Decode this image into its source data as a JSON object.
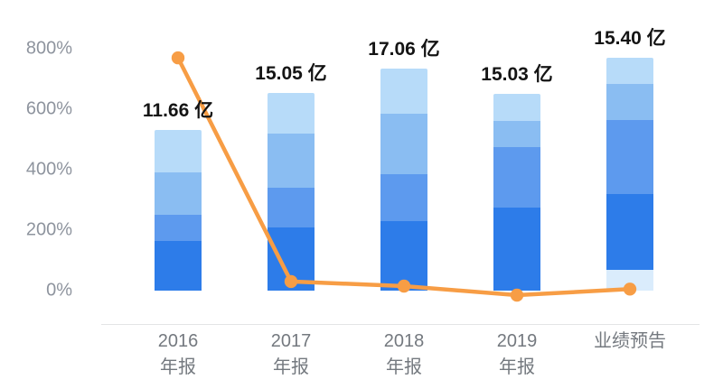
{
  "chart_data": {
    "type": "bar",
    "subtype": "stacked-bars-with-overlay-line",
    "title": "",
    "xlabel": "",
    "ylabel": "",
    "legend": "none",
    "grid": false,
    "ylim": [
      -60,
      860
    ],
    "categories": [
      {
        "lines": [
          "2016",
          "年报"
        ]
      },
      {
        "lines": [
          "2017",
          "年报"
        ]
      },
      {
        "lines": [
          "2018",
          "年报"
        ]
      },
      {
        "lines": [
          "2019",
          "年报"
        ]
      },
      {
        "lines": [
          "业绩预告"
        ]
      }
    ],
    "value_labels": [
      "11.66 亿",
      "15.05 亿",
      "17.06 亿",
      "15.03 亿",
      "15.40 亿"
    ],
    "bars": [
      {
        "total_pct": 530,
        "segments": [
          {
            "value": 165,
            "color": "#2d7ce9"
          },
          {
            "value": 85,
            "color": "#5d9aee"
          },
          {
            "value": 140,
            "color": "#8abdf2"
          },
          {
            "value": 140,
            "color": "#b7dbf9"
          }
        ]
      },
      {
        "total_pct": 655,
        "segments": [
          {
            "value": 210,
            "color": "#2d7ce9"
          },
          {
            "value": 130,
            "color": "#5d9aee"
          },
          {
            "value": 180,
            "color": "#8abdf2"
          },
          {
            "value": 135,
            "color": "#b7dbf9"
          }
        ]
      },
      {
        "total_pct": 735,
        "segments": [
          {
            "value": 230,
            "color": "#2d7ce9"
          },
          {
            "value": 155,
            "color": "#5d9aee"
          },
          {
            "value": 200,
            "color": "#8abdf2"
          },
          {
            "value": 150,
            "color": "#b7dbf9"
          }
        ]
      },
      {
        "total_pct": 650,
        "segments": [
          {
            "value": 275,
            "color": "#2d7ce9"
          },
          {
            "value": 200,
            "color": "#5d9aee"
          },
          {
            "value": 85,
            "color": "#8abdf2"
          },
          {
            "value": 90,
            "color": "#b7dbf9"
          }
        ]
      },
      {
        "total_pct": 770,
        "segments": [
          {
            "value": 70,
            "color": "#daecfc"
          },
          {
            "value": 250,
            "color": "#2d7ce9"
          },
          {
            "value": 245,
            "color": "#5d9aee"
          },
          {
            "value": 120,
            "color": "#8abdf2"
          },
          {
            "value": 85,
            "color": "#b7dbf9"
          }
        ]
      }
    ],
    "line": {
      "color": "#f79d45",
      "values": [
        770,
        30,
        15,
        -15,
        5
      ]
    },
    "yticks": [
      {
        "label": "800%",
        "value": 800
      },
      {
        "label": "600%",
        "value": 600
      },
      {
        "label": "400%",
        "value": 400
      },
      {
        "label": "200%",
        "value": 200
      },
      {
        "label": "0%",
        "value": 0
      }
    ],
    "colors": {
      "line": "#f79d45",
      "value_label": "#141414",
      "y_tick": "#8e949e",
      "x_tick": "#74797f",
      "axis_line": "#e3e4e6",
      "background": "#ffffff"
    }
  }
}
